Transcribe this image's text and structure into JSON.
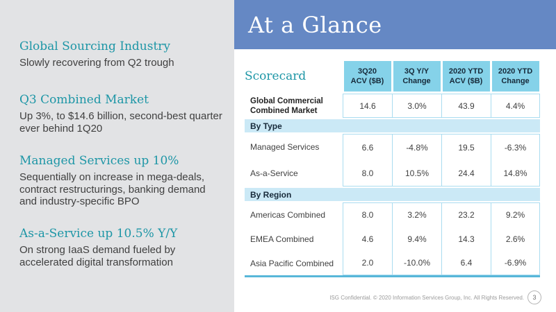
{
  "theme": {
    "panel-gray": "#e2e3e5",
    "banner-blue": "#6588c4",
    "teal": "#1d96a6",
    "header-cell-blue": "#85d2e9",
    "band-blue": "#cbe9f6",
    "grid-line-blue": "#a9dcf0",
    "table-bottom-blue": "#58b7d9",
    "header-text": "#172a3a",
    "body-text": "#3f3f3f",
    "footer-gray": "#9a9a9a"
  },
  "banner": {
    "title": "At a Glance"
  },
  "sidebar": {
    "sections": [
      {
        "heading": "Global Sourcing Industry",
        "body": "Slowly recovering from Q2 trough"
      },
      {
        "heading": "Q3 Combined Market",
        "body": "Up 3%, to $14.6 billion, second-best quarter ever behind 1Q20"
      },
      {
        "heading": "Managed Services up 10%",
        "body": "Sequentially on increase in mega-deals, contract restructurings, banking demand and industry-specific BPO"
      },
      {
        "heading": "As-a-Service up 10.5% Y/Y",
        "body": "On strong IaaS demand fueled by accelerated digital transformation"
      }
    ]
  },
  "scorecard": {
    "title": "Scorecard",
    "columns": [
      "3Q20\nACV ($B)",
      "3Q Y/Y\nChange",
      "2020 YTD\nACV ($B)",
      "2020 YTD\nChange"
    ],
    "section_labels": [
      "By Type",
      "By Region"
    ],
    "rows": [
      {
        "label": "Global Commercial\nCombined Market",
        "values": [
          "14.6",
          "3.0%",
          "43.9",
          "4.4%"
        ]
      },
      {
        "label": "Managed Services",
        "values": [
          "6.6",
          "-4.8%",
          "19.5",
          "-6.3%"
        ]
      },
      {
        "label": "As-a-Service",
        "values": [
          "8.0",
          "10.5%",
          "24.4",
          "14.8%"
        ]
      },
      {
        "label": "Americas Combined",
        "values": [
          "8.0",
          "3.2%",
          "23.2",
          "9.2%"
        ]
      },
      {
        "label": "EMEA Combined",
        "values": [
          "4.6",
          "9.4%",
          "14.3",
          "2.6%"
        ]
      },
      {
        "label": "Asia Pacific Combined",
        "values": [
          "2.0",
          "-10.0%",
          "6.4",
          "-6.9%"
        ]
      }
    ]
  },
  "footer": {
    "text": "ISG Confidential. © 2020 Information Services Group, Inc. All Rights Reserved.",
    "page_number": "3"
  }
}
